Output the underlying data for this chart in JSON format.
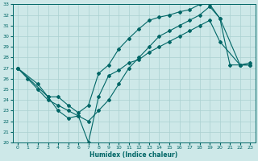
{
  "xlabel": "Humidex (Indice chaleur)",
  "ylabel": "",
  "bg_color": "#cde8e8",
  "grid_color": "#aad0d0",
  "line_color": "#006666",
  "xlim": [
    -0.5,
    23.5
  ],
  "ylim": [
    20,
    33
  ],
  "xticks": [
    0,
    1,
    2,
    3,
    4,
    5,
    6,
    7,
    8,
    9,
    10,
    11,
    12,
    13,
    14,
    15,
    16,
    17,
    18,
    19,
    20,
    21,
    22,
    23
  ],
  "yticks": [
    20,
    21,
    22,
    23,
    24,
    25,
    26,
    27,
    28,
    29,
    30,
    31,
    32,
    33
  ],
  "line1_x": [
    0,
    1,
    2,
    3,
    4,
    5,
    6,
    7,
    8,
    9,
    10,
    11,
    12,
    13,
    14,
    15,
    16,
    17,
    18,
    19,
    20,
    21,
    22,
    23
  ],
  "line1_y": [
    27,
    26,
    25,
    24,
    23.5,
    23,
    22.5,
    22,
    23,
    24,
    25.5,
    27,
    28,
    29,
    30,
    30.5,
    31,
    31.5,
    32,
    32.8,
    31.7,
    27.3,
    27.3,
    27.3
  ],
  "line2_x": [
    0,
    2,
    3,
    4,
    5,
    6,
    7,
    8,
    9,
    10,
    11,
    12,
    13,
    14,
    15,
    16,
    17,
    18,
    19,
    20,
    22,
    23
  ],
  "line2_y": [
    27,
    25.5,
    24.3,
    24.3,
    23.5,
    22.8,
    23.5,
    26.5,
    27.3,
    28.8,
    29.8,
    30.7,
    31.5,
    31.8,
    32,
    32.3,
    32.5,
    33,
    33,
    31.7,
    27.3,
    27.5
  ],
  "line3_x": [
    0,
    3,
    4,
    5,
    6,
    7,
    8,
    9,
    10,
    11,
    12,
    13,
    14,
    15,
    16,
    17,
    18,
    19,
    20,
    22,
    23
  ],
  "line3_y": [
    27,
    24.3,
    23,
    22.3,
    22.5,
    20,
    24.3,
    26.3,
    26.8,
    27.5,
    27.8,
    28.5,
    29,
    29.5,
    30,
    30.5,
    31,
    31.5,
    29.5,
    27.3,
    27.3
  ]
}
